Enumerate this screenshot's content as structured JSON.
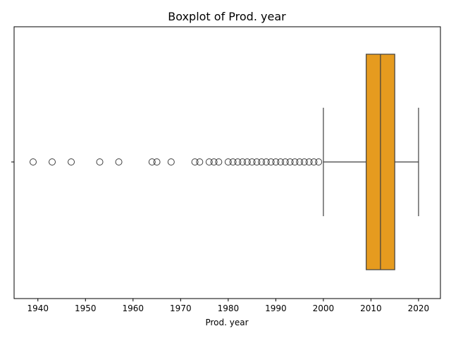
{
  "chart_data": {
    "type": "boxplot",
    "title": "Boxplot of Prod. year",
    "xlabel": "Prod. year",
    "ylabel": "",
    "orientation": "horizontal",
    "xlim": [
      1935,
      2024.6
    ],
    "xticks": [
      1940,
      1950,
      1960,
      1970,
      1980,
      1990,
      2000,
      2010,
      2020
    ],
    "yticks": [
      ""
    ],
    "grid": false,
    "box": {
      "color": "#e69b1f",
      "whisker_low": 2000,
      "q1": 2009,
      "median": 2012,
      "q3": 2015,
      "whisker_high": 2020
    },
    "outliers": [
      1939,
      1943,
      1947,
      1953,
      1957,
      1964,
      1965,
      1968,
      1973,
      1974,
      1976,
      1977,
      1978,
      1980,
      1981,
      1982,
      1983,
      1984,
      1985,
      1986,
      1987,
      1988,
      1989,
      1990,
      1991,
      1992,
      1993,
      1994,
      1995,
      1996,
      1997,
      1998,
      1999
    ]
  }
}
